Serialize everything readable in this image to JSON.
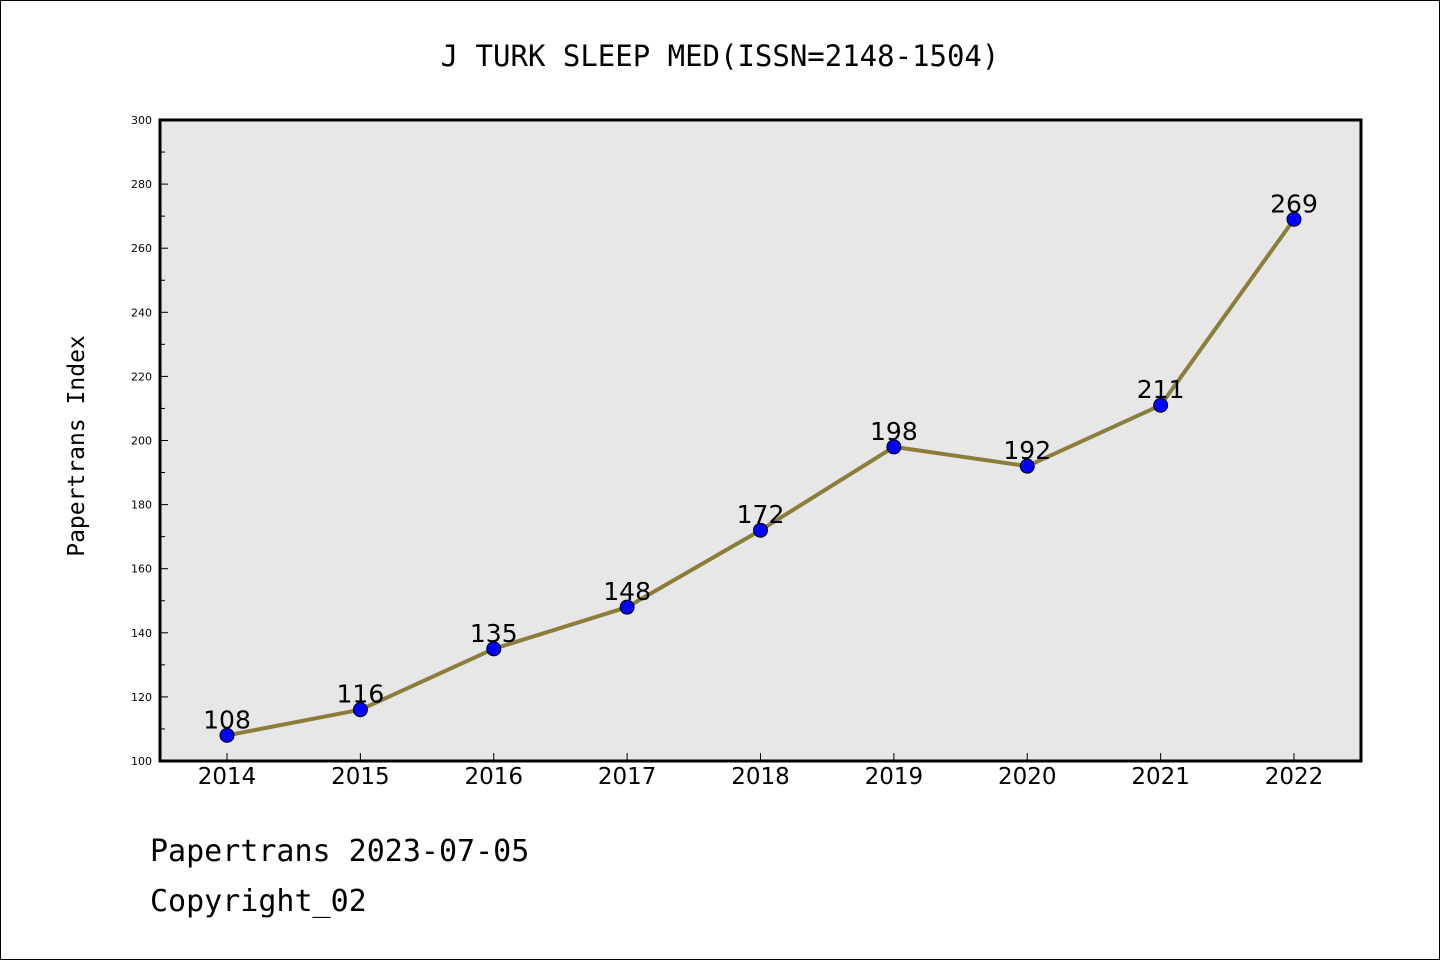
{
  "chart_data": {
    "type": "line",
    "title": "J TURK SLEEP MED(ISSN=2148-1504)",
    "xlabel": "",
    "ylabel": "Papertrans Index",
    "categories": [
      "2014",
      "2015",
      "2016",
      "2017",
      "2018",
      "2019",
      "2020",
      "2021",
      "2022"
    ],
    "series": [
      {
        "values": [
          108,
          116,
          135,
          148,
          172,
          198,
          192,
          211,
          269
        ]
      }
    ],
    "ylim": [
      100,
      300
    ],
    "yticks": [
      "100",
      "120",
      "140",
      "160",
      "180",
      "200",
      "220",
      "240",
      "260",
      "280",
      "300"
    ],
    "data_labels": [
      "108",
      "116",
      "135",
      "148",
      "172",
      "198",
      "192",
      "211",
      "269"
    ],
    "grid": false,
    "legend": "none",
    "colors": {
      "line": "#8b7d3a",
      "marker": "#0000ff",
      "plot_background": "#e7e7e7"
    }
  },
  "footer": {
    "line1": "Papertrans 2023-07-05",
    "line2": "Copyright_02"
  }
}
